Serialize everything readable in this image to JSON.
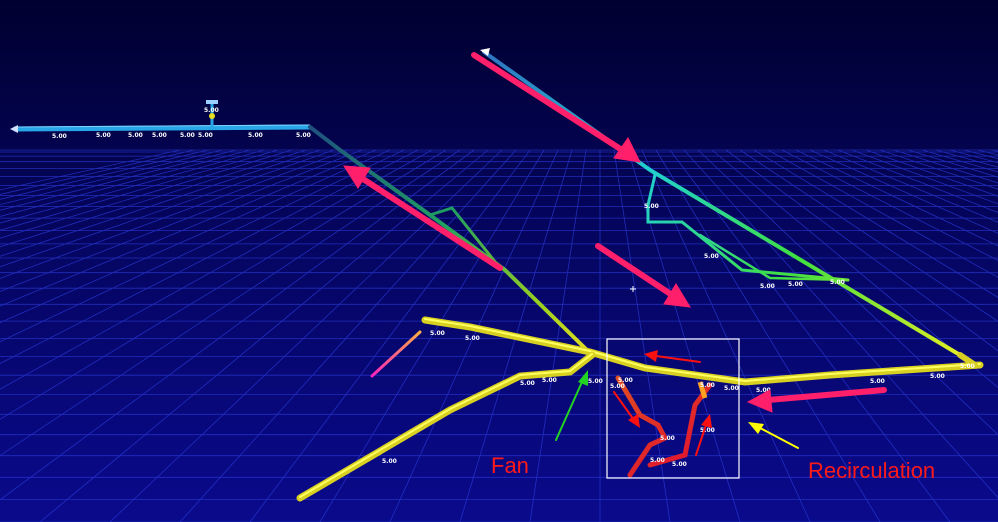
{
  "labels": {
    "fan": "Fan",
    "recirculation": "Recirculation"
  },
  "dimension_value": "5.00",
  "colors": {
    "background_top": "#000038",
    "background_bottom": "#0a0a8a",
    "grid": "#2a3ad8",
    "airflow_arrow": "#ff1f6a",
    "detail_arrow": "#ff1010",
    "fan_arrow": "#22d422",
    "recirculation_arrow": "#ffff00",
    "highlight_box": "#ffffff",
    "label": "#ff1a1a"
  }
}
